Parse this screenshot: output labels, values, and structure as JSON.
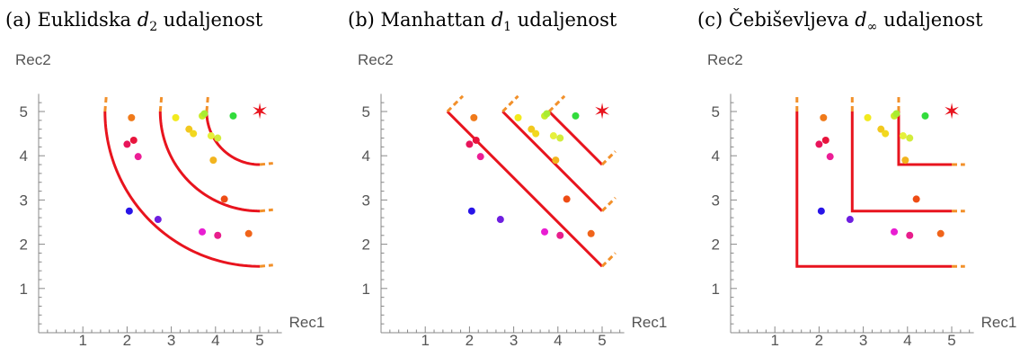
{
  "chart_data": [
    {
      "type": "scatter",
      "id": "a",
      "title": {
        "prefix": "(a) Euklidska ",
        "symbol": "d",
        "sub": "2",
        "suffix": " udaljenost"
      },
      "metric": "euclidean",
      "xlabel": "Rec1",
      "ylabel": "Rec2",
      "xlim": [
        0,
        5.5
      ],
      "ylim": [
        0,
        5.4
      ],
      "xticks": [
        1,
        2,
        3,
        4,
        5
      ],
      "yticks": [
        1,
        2,
        3,
        4,
        5
      ],
      "target": {
        "x": 5,
        "y": 5,
        "marker": "✶",
        "color": "#e8141e"
      },
      "contour_radii": [
        1.2,
        2.25,
        3.5
      ],
      "contour_color": "#e8141e",
      "contour_tail_color": "#f2902a",
      "points": [
        {
          "x": 2.1,
          "y": 4.86,
          "color": "#f07a1a"
        },
        {
          "x": 2.0,
          "y": 4.26,
          "color": "#e8145a"
        },
        {
          "x": 2.15,
          "y": 4.35,
          "color": "#e8143c"
        },
        {
          "x": 2.25,
          "y": 3.98,
          "color": "#ec1e96"
        },
        {
          "x": 3.1,
          "y": 4.86,
          "color": "#f2ea1e"
        },
        {
          "x": 3.4,
          "y": 4.6,
          "color": "#f2c81e"
        },
        {
          "x": 3.5,
          "y": 4.5,
          "color": "#f2d81e"
        },
        {
          "x": 3.7,
          "y": 4.9,
          "color": "#c8ec28"
        },
        {
          "x": 3.75,
          "y": 4.95,
          "color": "#a8ec32"
        },
        {
          "x": 4.4,
          "y": 4.9,
          "color": "#32dc3c"
        },
        {
          "x": 3.9,
          "y": 4.45,
          "color": "#e6f03c"
        },
        {
          "x": 4.05,
          "y": 4.4,
          "color": "#d2ec3c"
        },
        {
          "x": 3.95,
          "y": 3.9,
          "color": "#f2b41e"
        },
        {
          "x": 4.2,
          "y": 3.02,
          "color": "#ee4c14"
        },
        {
          "x": 2.05,
          "y": 2.75,
          "color": "#2814e8"
        },
        {
          "x": 2.7,
          "y": 2.56,
          "color": "#6e1ee0"
        },
        {
          "x": 3.7,
          "y": 2.28,
          "color": "#e81ed2"
        },
        {
          "x": 4.05,
          "y": 2.2,
          "color": "#e81e8c"
        },
        {
          "x": 4.75,
          "y": 2.24,
          "color": "#f0641a"
        }
      ]
    },
    {
      "type": "scatter",
      "id": "b",
      "title": {
        "prefix": "(b) Manhattan ",
        "symbol": "d",
        "sub": "1",
        "suffix": " udaljenost"
      },
      "metric": "manhattan",
      "xlabel": "Rec1",
      "ylabel": "Rec2",
      "xlim": [
        0,
        5.5
      ],
      "ylim": [
        0,
        5.4
      ],
      "xticks": [
        1,
        2,
        3,
        4,
        5
      ],
      "yticks": [
        1,
        2,
        3,
        4,
        5
      ],
      "target": {
        "x": 5,
        "y": 5,
        "marker": "✶",
        "color": "#e8141e"
      },
      "contour_radii": [
        1.2,
        2.25,
        3.5
      ],
      "contour_color": "#e8141e",
      "contour_tail_color": "#f2902a",
      "points": [
        {
          "x": 2.1,
          "y": 4.86,
          "color": "#f07a1a"
        },
        {
          "x": 2.0,
          "y": 4.26,
          "color": "#e8145a"
        },
        {
          "x": 2.15,
          "y": 4.35,
          "color": "#e8143c"
        },
        {
          "x": 2.25,
          "y": 3.98,
          "color": "#ec1e96"
        },
        {
          "x": 3.1,
          "y": 4.86,
          "color": "#f2ea1e"
        },
        {
          "x": 3.4,
          "y": 4.6,
          "color": "#f2c81e"
        },
        {
          "x": 3.5,
          "y": 4.5,
          "color": "#f2d81e"
        },
        {
          "x": 3.7,
          "y": 4.9,
          "color": "#c8ec28"
        },
        {
          "x": 3.75,
          "y": 4.95,
          "color": "#a8ec32"
        },
        {
          "x": 4.4,
          "y": 4.9,
          "color": "#32dc3c"
        },
        {
          "x": 3.9,
          "y": 4.45,
          "color": "#e6f03c"
        },
        {
          "x": 4.05,
          "y": 4.4,
          "color": "#d2ec3c"
        },
        {
          "x": 3.95,
          "y": 3.9,
          "color": "#f2b41e"
        },
        {
          "x": 4.2,
          "y": 3.02,
          "color": "#ee4c14"
        },
        {
          "x": 2.05,
          "y": 2.75,
          "color": "#2814e8"
        },
        {
          "x": 2.7,
          "y": 2.56,
          "color": "#6e1ee0"
        },
        {
          "x": 3.7,
          "y": 2.28,
          "color": "#e81ed2"
        },
        {
          "x": 4.05,
          "y": 2.2,
          "color": "#e81e8c"
        },
        {
          "x": 4.75,
          "y": 2.24,
          "color": "#f0641a"
        }
      ]
    },
    {
      "type": "scatter",
      "id": "c",
      "title": {
        "prefix": "(c) Čebiševljeva ",
        "symbol": "d",
        "sub": "∞",
        "suffix": " udaljenost"
      },
      "metric": "chebyshev",
      "xlabel": "Rec1",
      "ylabel": "Rec2",
      "xlim": [
        0,
        5.5
      ],
      "ylim": [
        0,
        5.4
      ],
      "xticks": [
        1,
        2,
        3,
        4,
        5
      ],
      "yticks": [
        1,
        2,
        3,
        4,
        5
      ],
      "target": {
        "x": 5,
        "y": 5,
        "marker": "✶",
        "color": "#e8141e"
      },
      "contour_radii": [
        1.2,
        2.25,
        3.5
      ],
      "contour_color": "#e8141e",
      "contour_tail_color": "#f2902a",
      "points": [
        {
          "x": 2.1,
          "y": 4.86,
          "color": "#f07a1a"
        },
        {
          "x": 2.0,
          "y": 4.26,
          "color": "#e8145a"
        },
        {
          "x": 2.15,
          "y": 4.35,
          "color": "#e8143c"
        },
        {
          "x": 2.25,
          "y": 3.98,
          "color": "#ec1e96"
        },
        {
          "x": 3.1,
          "y": 4.86,
          "color": "#f2ea1e"
        },
        {
          "x": 3.4,
          "y": 4.6,
          "color": "#f2c81e"
        },
        {
          "x": 3.5,
          "y": 4.5,
          "color": "#f2d81e"
        },
        {
          "x": 3.7,
          "y": 4.9,
          "color": "#c8ec28"
        },
        {
          "x": 3.75,
          "y": 4.95,
          "color": "#a8ec32"
        },
        {
          "x": 4.4,
          "y": 4.9,
          "color": "#32dc3c"
        },
        {
          "x": 3.9,
          "y": 4.45,
          "color": "#e6f03c"
        },
        {
          "x": 4.05,
          "y": 4.4,
          "color": "#d2ec3c"
        },
        {
          "x": 3.95,
          "y": 3.9,
          "color": "#f2b41e"
        },
        {
          "x": 4.2,
          "y": 3.02,
          "color": "#ee4c14"
        },
        {
          "x": 2.05,
          "y": 2.75,
          "color": "#2814e8"
        },
        {
          "x": 2.7,
          "y": 2.56,
          "color": "#6e1ee0"
        },
        {
          "x": 3.7,
          "y": 2.28,
          "color": "#e81ed2"
        },
        {
          "x": 4.05,
          "y": 2.2,
          "color": "#e81e8c"
        },
        {
          "x": 4.75,
          "y": 2.24,
          "color": "#f0641a"
        }
      ]
    }
  ]
}
